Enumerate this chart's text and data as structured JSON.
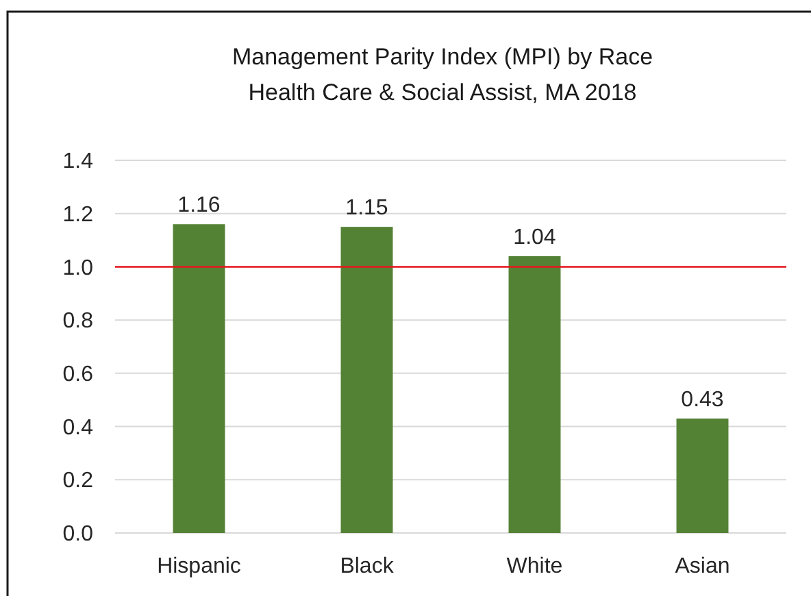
{
  "chart_data": {
    "type": "bar",
    "title": "Management Parity Index (MPI) by Race\nHealth Care & Social Assist, MA 2018",
    "categories": [
      "Hispanic",
      "Black",
      "White",
      "Asian"
    ],
    "values": [
      1.16,
      1.15,
      1.04,
      0.43
    ],
    "color": "#548235",
    "ylim": [
      0,
      1.4
    ],
    "yticks": [
      "0.0",
      "0.2",
      "0.4",
      "0.6",
      "0.8",
      "1.0",
      "1.2",
      "1.4"
    ],
    "grid": "y",
    "data_labels": true,
    "ref_lines": [
      {
        "axis": "y",
        "value": 1.0,
        "color": "#e8141b"
      }
    ]
  }
}
